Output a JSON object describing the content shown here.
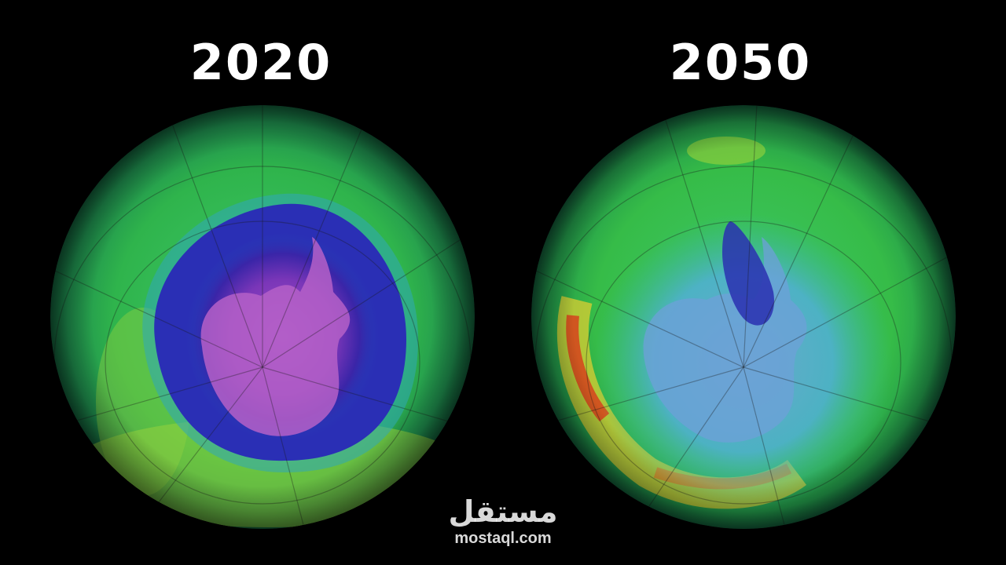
{
  "panels": [
    {
      "year": "2020"
    },
    {
      "year": "2050"
    }
  ],
  "watermark": {
    "arabic": "مستقل",
    "url": "mostaql.com"
  },
  "colors": {
    "background": "#000000",
    "label": "#ffffff",
    "ocean_green": "#2fb84a",
    "ozone_hole_purple": "#8a3cc0",
    "ozone_hole_blue": "#2a2fb5",
    "high_ozone_red": "#d83a1a"
  }
}
